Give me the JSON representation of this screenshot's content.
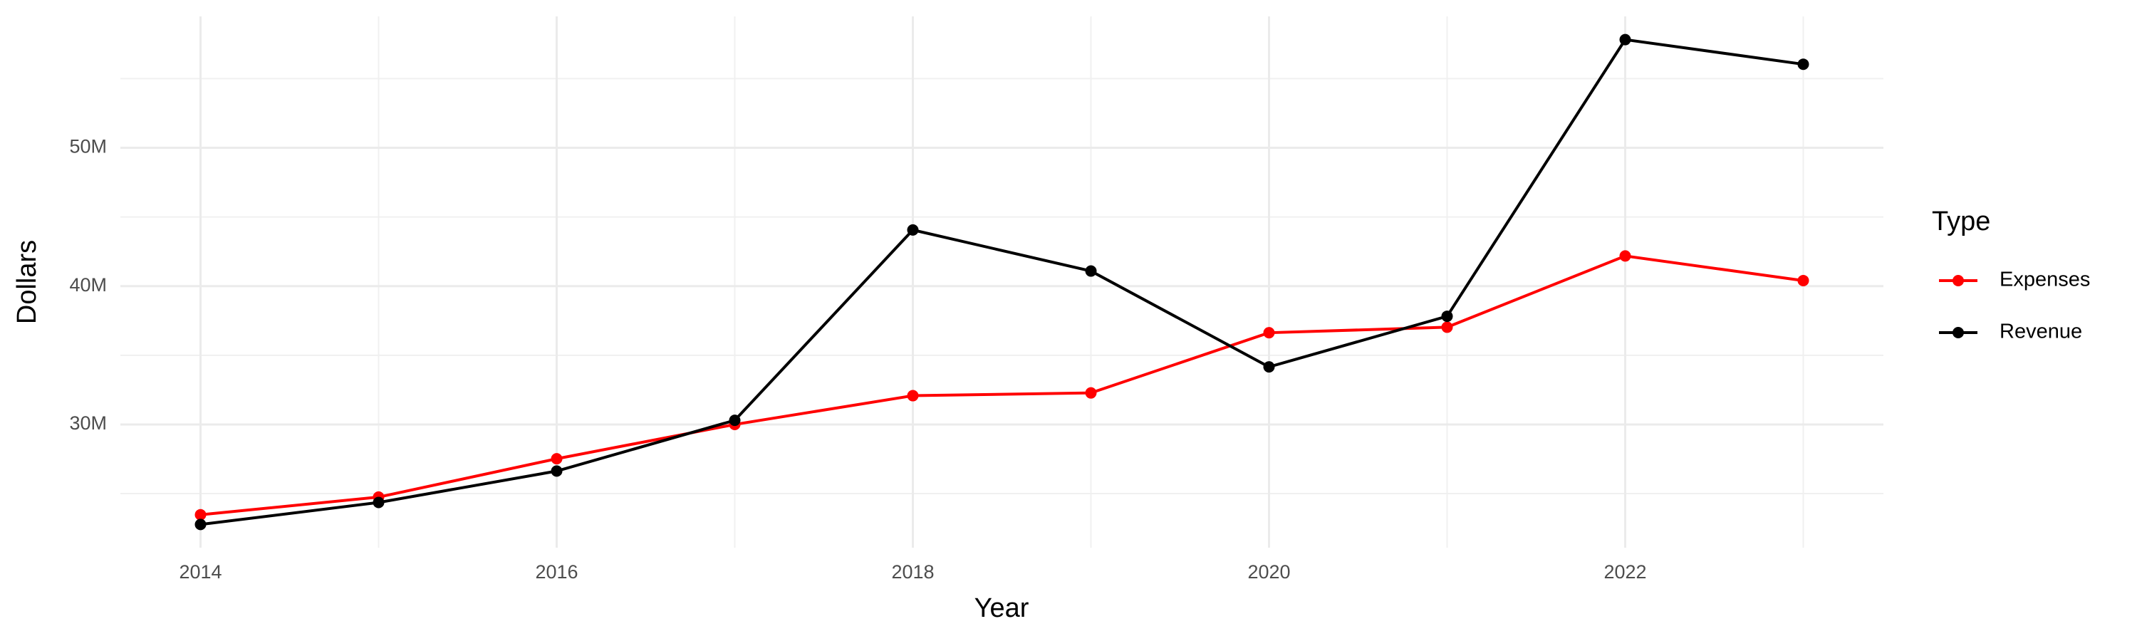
{
  "chart_data": {
    "type": "line",
    "x_label": "Year",
    "y_label": "Dollars",
    "legend_title": "Type",
    "x": [
      2014,
      2015,
      2016,
      2017,
      2018,
      2019,
      2020,
      2021,
      2022,
      2023
    ],
    "series": [
      {
        "name": "Expenses",
        "color": "#ff0000",
        "values": [
          23470000,
          24750000,
          27520000,
          30000000,
          32080000,
          32280000,
          36630000,
          37030000,
          42180000,
          40400000
        ]
      },
      {
        "name": "Revenue",
        "color": "#000000",
        "values": [
          22770000,
          24360000,
          26630000,
          30300000,
          44060000,
          41090000,
          34160000,
          37820000,
          57820000,
          56040000
        ]
      }
    ],
    "xlim": [
      2013.55,
      2023.45
    ],
    "xticks": [
      2014,
      2016,
      2018,
      2020,
      2022
    ],
    "x_minor_grid": [
      2015,
      2017,
      2019,
      2021,
      2023
    ],
    "ylim": [
      21090000,
      59500000
    ],
    "yticks": [
      {
        "value": 30000000,
        "label": "30M"
      },
      {
        "value": 40000000,
        "label": "40M"
      },
      {
        "value": 50000000,
        "label": "50M"
      }
    ],
    "y_minor_grid": [
      25000000,
      35000000,
      45000000,
      55000000
    ],
    "grid": true,
    "legend": "right"
  }
}
